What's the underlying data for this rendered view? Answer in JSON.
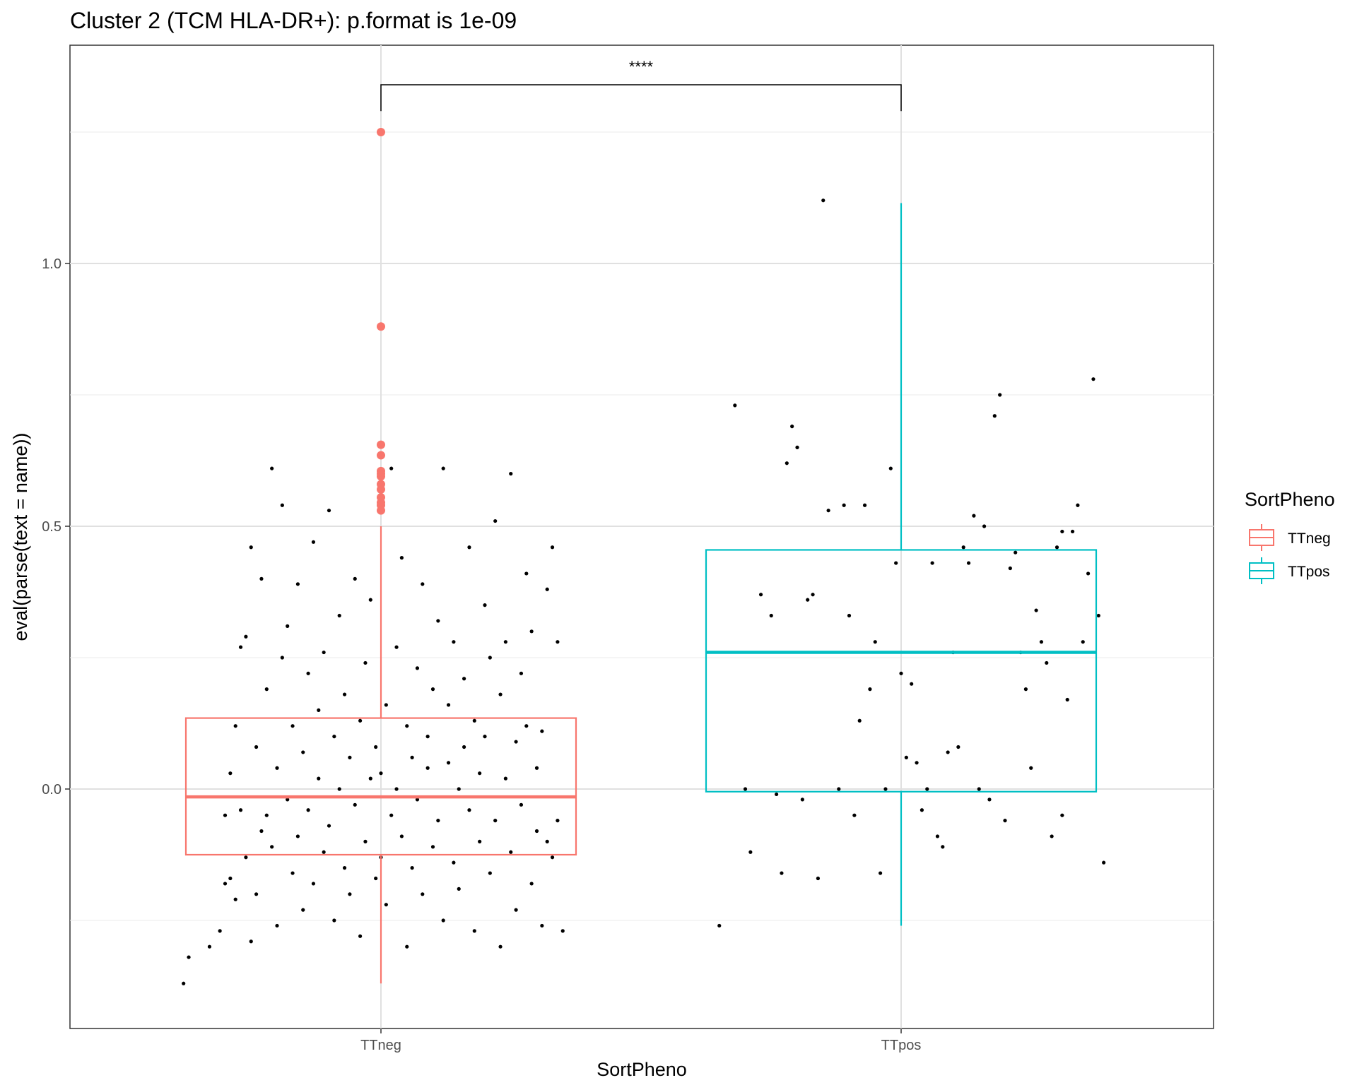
{
  "chart_data": {
    "type": "boxplot",
    "title": "Cluster 2 (TCM HLA-DR+): p.format is 1e-09",
    "xlabel": "SortPheno",
    "ylabel": "eval(parse(text = name))",
    "categories": [
      "TTneg",
      "TTpos"
    ],
    "y_ticks": [
      {
        "value": 0.0,
        "label": "0.0"
      },
      {
        "value": 0.5,
        "label": "0.5"
      },
      {
        "value": 1.0,
        "label": "1.0"
      }
    ],
    "ylim": [
      -0.45,
      1.42
    ],
    "grid": true,
    "legend": {
      "title": "SortPheno",
      "position": "right",
      "entries": [
        {
          "label": "TTneg",
          "color": "#F8766D"
        },
        {
          "label": "TTpos",
          "color": "#00BFC4"
        }
      ]
    },
    "significance": {
      "from": "TTneg",
      "to": "TTpos",
      "y": 1.34,
      "label": "****"
    },
    "boxes": [
      {
        "category": "TTneg",
        "color": "#F8766D",
        "q1": -0.125,
        "median": -0.015,
        "q3": 0.135,
        "whisker_low": -0.37,
        "whisker_high": 0.5,
        "outliers": [
          0.53,
          0.54,
          0.545,
          0.555,
          0.57,
          0.58,
          0.595,
          0.6,
          0.605,
          0.635,
          0.655,
          0.88,
          1.25
        ]
      },
      {
        "category": "TTpos",
        "color": "#00BFC4",
        "q1": -0.005,
        "median": 0.26,
        "q3": 0.455,
        "whisker_low": -0.26,
        "whisker_high": 1.115,
        "outliers": []
      }
    ],
    "jitter_points": {
      "color": "#000000",
      "TTneg": [
        [
          -0.38,
          -0.37
        ],
        [
          -0.37,
          -0.32
        ],
        [
          -0.33,
          -0.3
        ],
        [
          -0.31,
          -0.27
        ],
        [
          -0.3,
          -0.18
        ],
        [
          -0.3,
          -0.05
        ],
        [
          -0.29,
          -0.17
        ],
        [
          -0.29,
          0.03
        ],
        [
          -0.28,
          -0.21
        ],
        [
          -0.28,
          0.12
        ],
        [
          -0.27,
          0.27
        ],
        [
          -0.27,
          -0.04
        ],
        [
          -0.26,
          -0.13
        ],
        [
          -0.26,
          0.29
        ],
        [
          -0.25,
          0.46
        ],
        [
          -0.25,
          -0.29
        ],
        [
          -0.24,
          0.08
        ],
        [
          -0.24,
          -0.2
        ],
        [
          -0.23,
          0.4
        ],
        [
          -0.23,
          -0.08
        ],
        [
          -0.22,
          0.19
        ],
        [
          -0.22,
          -0.05
        ],
        [
          -0.21,
          0.61
        ],
        [
          -0.21,
          -0.11
        ],
        [
          -0.2,
          0.04
        ],
        [
          -0.2,
          -0.26
        ],
        [
          -0.19,
          0.25
        ],
        [
          -0.19,
          0.54
        ],
        [
          -0.18,
          -0.02
        ],
        [
          -0.18,
          0.31
        ],
        [
          -0.17,
          -0.16
        ],
        [
          -0.17,
          0.12
        ],
        [
          -0.16,
          0.39
        ],
        [
          -0.16,
          -0.09
        ],
        [
          -0.15,
          0.07
        ],
        [
          -0.15,
          -0.23
        ],
        [
          -0.14,
          0.22
        ],
        [
          -0.14,
          -0.04
        ],
        [
          -0.13,
          0.47
        ],
        [
          -0.13,
          -0.18
        ],
        [
          -0.12,
          0.15
        ],
        [
          -0.12,
          0.02
        ],
        [
          -0.11,
          -0.12
        ],
        [
          -0.11,
          0.26
        ],
        [
          -0.1,
          -0.07
        ],
        [
          -0.1,
          0.53
        ],
        [
          -0.09,
          0.1
        ],
        [
          -0.09,
          -0.25
        ],
        [
          -0.08,
          0.33
        ],
        [
          -0.08,
          0.0
        ],
        [
          -0.07,
          -0.15
        ],
        [
          -0.07,
          0.18
        ],
        [
          -0.06,
          0.06
        ],
        [
          -0.06,
          -0.2
        ],
        [
          -0.05,
          0.4
        ],
        [
          -0.05,
          -0.03
        ],
        [
          -0.04,
          0.13
        ],
        [
          -0.04,
          -0.28
        ],
        [
          -0.03,
          0.24
        ],
        [
          -0.03,
          -0.1
        ],
        [
          -0.02,
          0.02
        ],
        [
          -0.02,
          0.36
        ],
        [
          -0.01,
          -0.17
        ],
        [
          -0.01,
          0.08
        ],
        [
          0.0,
          0.03
        ],
        [
          0.0,
          -0.13
        ],
        [
          0.01,
          0.16
        ],
        [
          0.01,
          -0.22
        ],
        [
          0.02,
          0.61
        ],
        [
          0.02,
          -0.05
        ],
        [
          0.03,
          0.27
        ],
        [
          0.03,
          0.0
        ],
        [
          0.04,
          -0.09
        ],
        [
          0.04,
          0.44
        ],
        [
          0.05,
          0.12
        ],
        [
          0.05,
          -0.3
        ],
        [
          0.06,
          0.06
        ],
        [
          0.06,
          -0.15
        ],
        [
          0.07,
          0.23
        ],
        [
          0.07,
          -0.02
        ],
        [
          0.08,
          0.39
        ],
        [
          0.08,
          -0.2
        ],
        [
          0.09,
          0.1
        ],
        [
          0.09,
          0.04
        ],
        [
          0.1,
          -0.11
        ],
        [
          0.1,
          0.19
        ],
        [
          0.11,
          0.32
        ],
        [
          0.11,
          -0.06
        ],
        [
          0.12,
          0.61
        ],
        [
          0.12,
          -0.25
        ],
        [
          0.13,
          0.05
        ],
        [
          0.13,
          0.16
        ],
        [
          0.14,
          -0.14
        ],
        [
          0.14,
          0.28
        ],
        [
          0.15,
          0.0
        ],
        [
          0.15,
          -0.19
        ],
        [
          0.16,
          0.21
        ],
        [
          0.16,
          0.08
        ],
        [
          0.17,
          -0.04
        ],
        [
          0.17,
          0.46
        ],
        [
          0.18,
          -0.27
        ],
        [
          0.18,
          0.13
        ],
        [
          0.19,
          0.03
        ],
        [
          0.19,
          -0.1
        ],
        [
          0.2,
          0.35
        ],
        [
          0.2,
          0.1
        ],
        [
          0.21,
          -0.16
        ],
        [
          0.21,
          0.25
        ],
        [
          0.22,
          0.51
        ],
        [
          0.22,
          -0.06
        ],
        [
          0.23,
          0.18
        ],
        [
          0.23,
          -0.3
        ],
        [
          0.24,
          0.02
        ],
        [
          0.24,
          0.28
        ],
        [
          0.25,
          -0.12
        ],
        [
          0.25,
          0.6
        ],
        [
          0.26,
          0.09
        ],
        [
          0.26,
          -0.23
        ],
        [
          0.27,
          0.22
        ],
        [
          0.27,
          -0.03
        ],
        [
          0.28,
          0.41
        ],
        [
          0.28,
          0.12
        ],
        [
          0.29,
          -0.18
        ],
        [
          0.29,
          0.3
        ],
        [
          0.3,
          0.04
        ],
        [
          0.3,
          -0.08
        ],
        [
          0.31,
          0.11
        ],
        [
          0.31,
          -0.26
        ],
        [
          0.32,
          0.38
        ],
        [
          0.32,
          -0.1
        ],
        [
          0.33,
          0.46
        ],
        [
          0.33,
          -0.13
        ],
        [
          0.34,
          0.28
        ],
        [
          0.34,
          -0.06
        ],
        [
          0.35,
          -0.27
        ]
      ],
      "TTpos": [
        [
          -0.35,
          -0.26
        ],
        [
          -0.32,
          0.73
        ],
        [
          -0.3,
          0.0
        ],
        [
          -0.29,
          -0.12
        ],
        [
          -0.27,
          0.37
        ],
        [
          -0.25,
          0.33
        ],
        [
          -0.24,
          -0.01
        ],
        [
          -0.23,
          -0.16
        ],
        [
          -0.22,
          0.62
        ],
        [
          -0.21,
          0.69
        ],
        [
          -0.2,
          0.65
        ],
        [
          -0.19,
          -0.02
        ],
        [
          -0.18,
          0.36
        ],
        [
          -0.17,
          0.37
        ],
        [
          -0.16,
          -0.17
        ],
        [
          -0.15,
          1.12
        ],
        [
          -0.14,
          0.53
        ],
        [
          -0.12,
          0.0
        ],
        [
          -0.11,
          0.54
        ],
        [
          -0.1,
          0.33
        ],
        [
          -0.09,
          -0.05
        ],
        [
          -0.08,
          0.13
        ],
        [
          -0.07,
          0.54
        ],
        [
          -0.06,
          0.19
        ],
        [
          -0.05,
          0.28
        ],
        [
          -0.04,
          -0.16
        ],
        [
          -0.03,
          0.0
        ],
        [
          -0.02,
          0.61
        ],
        [
          -0.01,
          0.43
        ],
        [
          0.0,
          0.22
        ],
        [
          0.01,
          0.06
        ],
        [
          0.02,
          0.2
        ],
        [
          0.03,
          0.05
        ],
        [
          0.04,
          -0.04
        ],
        [
          0.05,
          0.0
        ],
        [
          0.06,
          0.43
        ],
        [
          0.07,
          -0.09
        ],
        [
          0.08,
          -0.11
        ],
        [
          0.09,
          0.07
        ],
        [
          0.1,
          0.26
        ],
        [
          0.11,
          0.08
        ],
        [
          0.12,
          0.46
        ],
        [
          0.13,
          0.43
        ],
        [
          0.14,
          0.52
        ],
        [
          0.15,
          0.0
        ],
        [
          0.16,
          0.5
        ],
        [
          0.17,
          -0.02
        ],
        [
          0.18,
          0.71
        ],
        [
          0.19,
          0.75
        ],
        [
          0.2,
          -0.06
        ],
        [
          0.21,
          0.42
        ],
        [
          0.22,
          0.45
        ],
        [
          0.23,
          0.26
        ],
        [
          0.24,
          0.19
        ],
        [
          0.25,
          0.04
        ],
        [
          0.26,
          0.34
        ],
        [
          0.27,
          0.28
        ],
        [
          0.28,
          0.24
        ],
        [
          0.29,
          -0.09
        ],
        [
          0.3,
          0.46
        ],
        [
          0.31,
          0.49
        ],
        [
          0.32,
          0.17
        ],
        [
          0.33,
          0.49
        ],
        [
          0.34,
          0.54
        ],
        [
          0.35,
          0.28
        ],
        [
          0.36,
          0.41
        ],
        [
          0.37,
          0.78
        ],
        [
          0.38,
          0.33
        ],
        [
          0.39,
          -0.14
        ],
        [
          0.31,
          -0.05
        ]
      ]
    }
  }
}
